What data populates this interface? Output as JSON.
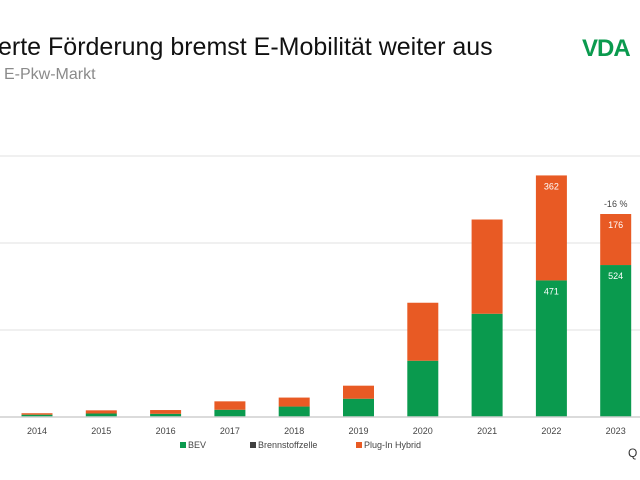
{
  "title": "erte Förderung bremst E-Mobilität weiter aus",
  "subtitle": "E-Pkw-Markt",
  "logo": "VDA",
  "source_fragment": "Q",
  "chart_data": {
    "type": "bar",
    "stacked": true,
    "categories": [
      "2014",
      "2015",
      "2016",
      "2017",
      "2018",
      "2019",
      "2020",
      "2021",
      "2022",
      "2023"
    ],
    "series": [
      {
        "name": "BEV",
        "color": "#0a9a4e",
        "values": [
          8,
          12,
          11,
          25,
          36,
          63,
          194,
          356,
          471,
          524
        ]
      },
      {
        "name": "Brennstoffzelle",
        "color": "#404040",
        "values": [
          0,
          0,
          0,
          0,
          0,
          0,
          0,
          0,
          0,
          0
        ]
      },
      {
        "name": "Plug-In Hybrid",
        "color": "#e85a24",
        "values": [
          5,
          11,
          13,
          29,
          31,
          45,
          200,
          325,
          362,
          176
        ]
      }
    ],
    "data_labels": {
      "2022": {
        "BEV": "471",
        "Plug-In Hybrid": "362"
      },
      "2023": {
        "BEV": "524",
        "Plug-In Hybrid": "176"
      }
    },
    "annotation": {
      "category": "2023",
      "text": "-16 %"
    },
    "ylim": [
      0,
      900
    ],
    "grid": true,
    "legend": "bottom"
  }
}
